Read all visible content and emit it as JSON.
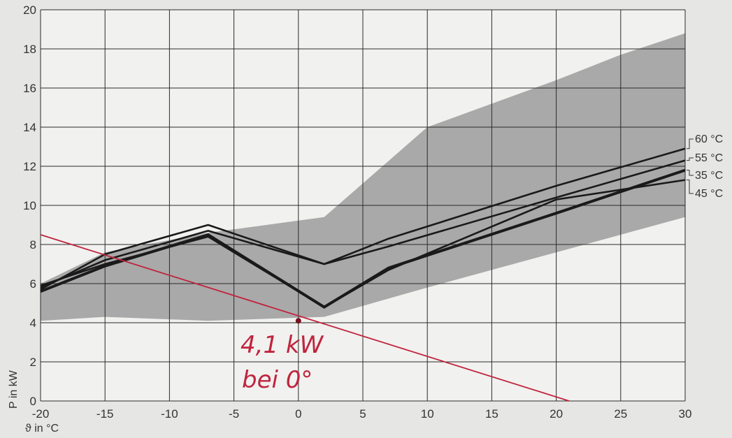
{
  "chart_data": {
    "type": "line",
    "xlabel": "ϑ in °C",
    "ylabel": "P in kW",
    "xlim": [
      -20,
      30
    ],
    "ylim": [
      0,
      20
    ],
    "xticks": [
      -20,
      -15,
      -10,
      -5,
      0,
      5,
      10,
      15,
      20,
      25,
      30
    ],
    "yticks": [
      0,
      2,
      4,
      6,
      8,
      10,
      12,
      14,
      16,
      18,
      20
    ],
    "grid": true,
    "band": {
      "upper": [
        [
          -20,
          6.0
        ],
        [
          -15,
          7.6
        ],
        [
          -7,
          8.6
        ],
        [
          2,
          9.4
        ],
        [
          10,
          14.0
        ],
        [
          20,
          16.4
        ],
        [
          25,
          17.7
        ],
        [
          30,
          18.8
        ]
      ],
      "lower": [
        [
          -20,
          4.1
        ],
        [
          -15,
          4.3
        ],
        [
          -7,
          4.1
        ],
        [
          2,
          4.3
        ],
        [
          10,
          5.8
        ],
        [
          20,
          7.6
        ],
        [
          25,
          8.5
        ],
        [
          30,
          9.4
        ]
      ],
      "color": "#a9a9a9"
    },
    "series": [
      {
        "name": "60 °C",
        "color": "#1a1a1a",
        "points": [
          [
            -20,
            5.7
          ],
          [
            -15,
            7.5
          ],
          [
            -7,
            9.0
          ],
          [
            2,
            7.0
          ],
          [
            7,
            8.3
          ],
          [
            20,
            11.0
          ],
          [
            30,
            12.9
          ]
        ]
      },
      {
        "name": "55 °C",
        "color": "#1a1a1a",
        "points": [
          [
            -20,
            5.8
          ],
          [
            -15,
            7.2
          ],
          [
            -7,
            8.7
          ],
          [
            2,
            7.0
          ],
          [
            7,
            7.9
          ],
          [
            20,
            10.4
          ],
          [
            30,
            12.3
          ]
        ]
      },
      {
        "name": "35 °C",
        "color": "#1a1a1a",
        "points": [
          [
            -20,
            5.6
          ],
          [
            -15,
            6.9
          ],
          [
            -7,
            8.5
          ],
          [
            2,
            4.8
          ],
          [
            7,
            6.8
          ],
          [
            20,
            9.6
          ],
          [
            30,
            11.8
          ]
        ]
      },
      {
        "name": "45 °C",
        "color": "#1a1a1a",
        "points": [
          [
            -20,
            5.9
          ],
          [
            -15,
            7.0
          ],
          [
            -7,
            8.4
          ],
          [
            2,
            4.8
          ],
          [
            7,
            6.7
          ],
          [
            20,
            10.3
          ],
          [
            30,
            11.3
          ]
        ]
      }
    ],
    "heating_load_line": {
      "color": "#c0243e",
      "points": [
        [
          -20,
          8.5
        ],
        [
          21,
          0
        ]
      ]
    },
    "marker": {
      "x": 0,
      "y": 4.1,
      "color": "#7a1020"
    },
    "annotation": {
      "lines": [
        "4,1 kW",
        "bei 0°"
      ],
      "color": "#c0243e"
    }
  }
}
